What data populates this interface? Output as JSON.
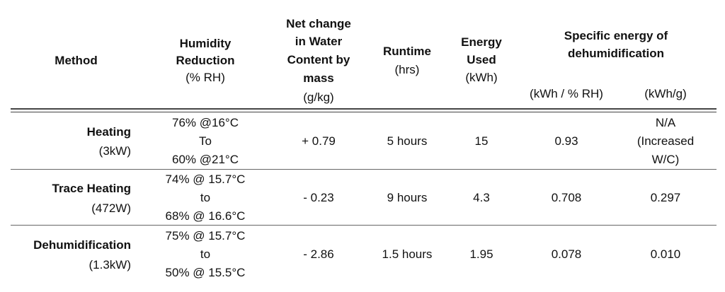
{
  "table": {
    "headers": {
      "method": "Method",
      "humidity_bold_1": "Humidity",
      "humidity_bold_2": "Reduction",
      "humidity_unit": "(% RH)",
      "net_bold_1": "Net change",
      "net_bold_2": "in Water",
      "net_bold_3": "Content by",
      "net_bold_4": "mass",
      "net_unit": "(g/kg)",
      "runtime_bold": "Runtime",
      "runtime_unit": "(hrs)",
      "energy_bold_1": "Energy",
      "energy_bold_2": "Used",
      "energy_unit": "(kWh)",
      "specific_bold_1": "Specific energy of",
      "specific_bold_2": "dehumidification",
      "specific_sub_1": "(kWh / % RH)",
      "specific_sub_2": "(kWh/g)"
    },
    "rows": [
      {
        "method": "Heating",
        "power": "(3kW)",
        "humidity": [
          "76% @16°C",
          "To",
          "60% @21°C"
        ],
        "net_change": "+ 0.79",
        "runtime": "5 hours",
        "energy": "15",
        "spec_rh": "0.93",
        "spec_g": [
          "N/A",
          "(Increased",
          "W/C)"
        ]
      },
      {
        "method": "Trace Heating",
        "power": "(472W)",
        "humidity": [
          "74% @ 15.7°C",
          "to",
          "68% @ 16.6°C"
        ],
        "net_change": "- 0.23",
        "runtime": "9 hours",
        "energy": "4.3",
        "spec_rh": "0.708",
        "spec_g": [
          "0.297"
        ]
      },
      {
        "method": "Dehumidification",
        "power": "(1.3kW)",
        "humidity": [
          "75% @ 15.7°C",
          "to",
          "50% @ 15.5°C"
        ],
        "net_change": "- 2.86",
        "runtime": "1.5 hours",
        "energy": "1.95",
        "spec_rh": "0.078",
        "spec_g": [
          "0.010"
        ]
      }
    ]
  }
}
